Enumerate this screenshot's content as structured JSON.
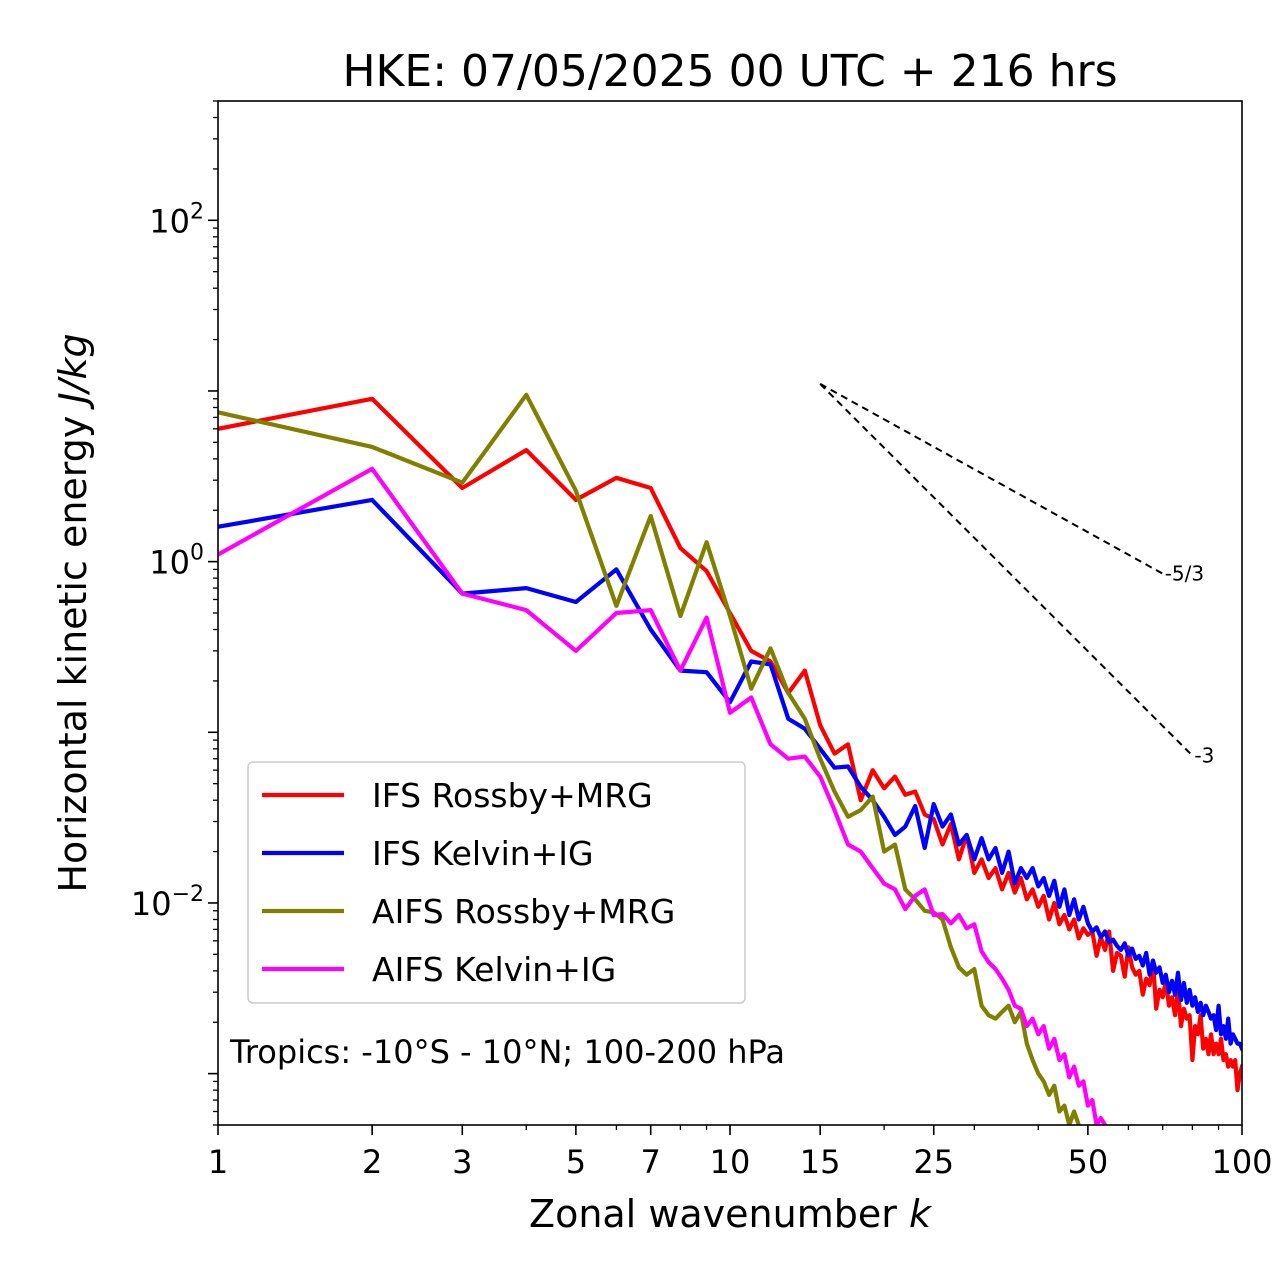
{
  "chart_data": {
    "type": "line",
    "title": "HKE: 07/05/2025 00 UTC + 216 hrs",
    "xlabel": "Zonal wavenumber",
    "xlabel_var": "k",
    "ylabel": "Horizontal kinetic energy",
    "ylabel_units": "J/kg",
    "xscale": "log",
    "yscale": "log",
    "xlim": [
      1,
      100
    ],
    "ylim": [
      0.0005,
      500
    ],
    "xticks": [
      1,
      2,
      3,
      5,
      7,
      10,
      15,
      25,
      50,
      100
    ],
    "xtick_labels": [
      "1",
      "2",
      "3",
      "5",
      "7",
      "10",
      "15",
      "25",
      "50",
      "100"
    ],
    "yticks": [
      {
        "value": 100,
        "base": "10",
        "exp": "2"
      },
      {
        "value": 1,
        "base": "10",
        "exp": "0"
      },
      {
        "value": 0.01,
        "base": "10",
        "exp": "−2"
      }
    ],
    "legend_position": "lower-left",
    "annotation": "Tropics: -10°S - 10°N; 100-200 hPa",
    "reference_slopes": [
      {
        "label": "-5/3",
        "slope": -1.6667,
        "x": [
          15,
          70
        ],
        "y": [
          11,
          0.85
        ]
      },
      {
        "label": "-3",
        "slope": -3,
        "x": [
          15,
          80
        ],
        "y": [
          11,
          0.073
        ]
      }
    ],
    "series": [
      {
        "name": "IFS Rossby+MRG",
        "color": "#ff0000",
        "x": [
          1,
          2,
          3,
          4,
          5,
          6,
          7,
          8,
          9,
          10,
          11,
          12,
          13,
          14,
          15,
          16,
          17,
          18,
          19,
          20,
          21,
          22,
          23,
          24,
          25,
          26,
          27,
          28,
          29,
          30,
          31,
          32,
          33,
          34,
          35,
          36,
          37,
          38,
          39,
          40,
          41,
          42,
          43,
          44,
          45,
          46,
          47,
          48,
          49,
          50,
          51,
          52,
          53,
          54,
          55,
          56,
          57,
          58,
          59,
          60,
          61,
          62,
          63,
          64,
          65,
          66,
          67,
          68,
          69,
          70,
          71,
          72,
          73,
          74,
          75,
          76,
          77,
          78,
          79,
          80,
          81,
          82,
          83,
          84,
          85,
          86,
          87,
          88,
          89,
          90,
          91,
          92,
          93,
          94,
          95,
          96,
          97,
          98,
          99,
          100
        ],
        "values": [
          6.0,
          9.0,
          2.7,
          4.5,
          2.3,
          3.1,
          2.7,
          1.2,
          0.88,
          0.5,
          0.3,
          0.26,
          0.17,
          0.23,
          0.11,
          0.075,
          0.085,
          0.04,
          0.06,
          0.047,
          0.055,
          0.043,
          0.045,
          0.033,
          0.031,
          0.022,
          0.029,
          0.018,
          0.025,
          0.015,
          0.018,
          0.014,
          0.016,
          0.012,
          0.015,
          0.0115,
          0.014,
          0.0105,
          0.012,
          0.0095,
          0.011,
          0.008,
          0.01,
          0.0075,
          0.0085,
          0.007,
          0.008,
          0.0062,
          0.0071,
          0.0065,
          0.0068,
          0.0049,
          0.0063,
          0.0053,
          0.0068,
          0.004,
          0.0051,
          0.0049,
          0.0037,
          0.0055,
          0.0042,
          0.0038,
          0.004,
          0.0029,
          0.0036,
          0.0033,
          0.0045,
          0.0024,
          0.0031,
          0.0028,
          0.0035,
          0.0025,
          0.0028,
          0.0022,
          0.0031,
          0.0019,
          0.0024,
          0.0021,
          0.0022,
          0.0012,
          0.0019,
          0.0017,
          0.0022,
          0.0014,
          0.0016,
          0.0013,
          0.0017,
          0.0013,
          0.0015,
          0.0013,
          0.0016,
          0.0012,
          0.0013,
          0.0011,
          0.0012,
          0.0011,
          0.0012,
          0.0008,
          0.001,
          0.0011
        ]
      },
      {
        "name": "IFS Kelvin+IG",
        "color": "#0000ff",
        "x": [
          1,
          2,
          3,
          4,
          5,
          6,
          7,
          8,
          9,
          10,
          11,
          12,
          13,
          14,
          15,
          16,
          17,
          18,
          19,
          20,
          21,
          22,
          23,
          24,
          25,
          26,
          27,
          28,
          29,
          30,
          31,
          32,
          33,
          34,
          35,
          36,
          37,
          38,
          39,
          40,
          41,
          42,
          43,
          44,
          45,
          46,
          47,
          48,
          49,
          50,
          51,
          52,
          53,
          54,
          55,
          56,
          57,
          58,
          59,
          60,
          61,
          62,
          63,
          64,
          65,
          66,
          67,
          68,
          69,
          70,
          71,
          72,
          73,
          74,
          75,
          76,
          77,
          78,
          79,
          80,
          81,
          82,
          83,
          84,
          85,
          86,
          87,
          88,
          89,
          90,
          91,
          92,
          93,
          94,
          95,
          96,
          97,
          98,
          99,
          100
        ],
        "values": [
          1.6,
          2.3,
          0.65,
          0.7,
          0.58,
          0.9,
          0.4,
          0.23,
          0.225,
          0.15,
          0.26,
          0.25,
          0.12,
          0.105,
          0.08,
          0.062,
          0.063,
          0.048,
          0.04,
          0.032,
          0.025,
          0.028,
          0.037,
          0.021,
          0.038,
          0.028,
          0.033,
          0.022,
          0.025,
          0.018,
          0.024,
          0.018,
          0.021,
          0.015,
          0.02,
          0.013,
          0.016,
          0.014,
          0.016,
          0.0125,
          0.014,
          0.011,
          0.0135,
          0.0095,
          0.012,
          0.0085,
          0.0105,
          0.008,
          0.0095,
          0.0076,
          0.0068,
          0.0072,
          0.0063,
          0.0068,
          0.0059,
          0.0061,
          0.0056,
          0.0053,
          0.0058,
          0.0049,
          0.0054,
          0.0047,
          0.0049,
          0.0043,
          0.0051,
          0.0038,
          0.0046,
          0.0039,
          0.0042,
          0.0034,
          0.0038,
          0.003,
          0.0035,
          0.0029,
          0.0039,
          0.0027,
          0.0034,
          0.0026,
          0.0031,
          0.0025,
          0.0028,
          0.0023,
          0.0026,
          0.0022,
          0.0025,
          0.0023,
          0.0021,
          0.0022,
          0.0018,
          0.0025,
          0.0017,
          0.0019,
          0.0016,
          0.0021,
          0.0015,
          0.0017,
          0.0016,
          0.0015,
          0.0015,
          0.0014
        ]
      },
      {
        "name": "AIFS Rossby+MRG",
        "color": "#808000",
        "x": [
          1,
          2,
          3,
          4,
          5,
          6,
          7,
          8,
          9,
          10,
          11,
          12,
          13,
          14,
          15,
          16,
          17,
          18,
          19,
          20,
          21,
          22,
          23,
          24,
          25,
          26,
          27,
          28,
          29,
          30,
          31,
          32,
          33,
          34,
          35,
          36,
          37,
          38,
          39,
          40,
          41,
          42,
          43,
          44,
          45,
          46,
          47,
          48
        ],
        "values": [
          7.5,
          4.7,
          2.9,
          9.5,
          2.6,
          0.55,
          1.85,
          0.48,
          1.3,
          0.48,
          0.18,
          0.31,
          0.17,
          0.12,
          0.07,
          0.045,
          0.032,
          0.035,
          0.042,
          0.02,
          0.022,
          0.012,
          0.0105,
          0.009,
          0.0088,
          0.008,
          0.0055,
          0.0042,
          0.0038,
          0.0041,
          0.0025,
          0.0022,
          0.0021,
          0.0023,
          0.0025,
          0.002,
          0.0023,
          0.0015,
          0.0012,
          0.001,
          0.0009,
          0.00075,
          0.00085,
          0.0006,
          0.00065,
          0.0005,
          0.0006,
          0.0005
        ]
      },
      {
        "name": "AIFS Kelvin+IG",
        "color": "#ff00ff",
        "x": [
          1,
          2,
          3,
          4,
          5,
          6,
          7,
          8,
          9,
          10,
          11,
          12,
          13,
          14,
          15,
          16,
          17,
          18,
          19,
          20,
          21,
          22,
          23,
          24,
          25,
          26,
          27,
          28,
          29,
          30,
          31,
          32,
          33,
          34,
          35,
          36,
          37,
          38,
          39,
          40,
          41,
          42,
          43,
          44,
          45,
          46,
          47,
          48,
          49,
          50,
          51,
          52,
          53,
          54
        ],
        "values": [
          1.1,
          3.5,
          0.65,
          0.52,
          0.3,
          0.5,
          0.52,
          0.23,
          0.47,
          0.13,
          0.16,
          0.085,
          0.07,
          0.072,
          0.055,
          0.035,
          0.022,
          0.02,
          0.016,
          0.013,
          0.012,
          0.0092,
          0.011,
          0.012,
          0.0085,
          0.0086,
          0.0076,
          0.0085,
          0.0071,
          0.0075,
          0.0052,
          0.0045,
          0.0041,
          0.0036,
          0.0031,
          0.0025,
          0.0024,
          0.0019,
          0.0021,
          0.0017,
          0.0019,
          0.0014,
          0.0016,
          0.0012,
          0.0013,
          0.00095,
          0.0011,
          0.00085,
          0.0009,
          0.00065,
          0.0007,
          0.0005,
          0.00055,
          0.0005
        ]
      }
    ]
  }
}
